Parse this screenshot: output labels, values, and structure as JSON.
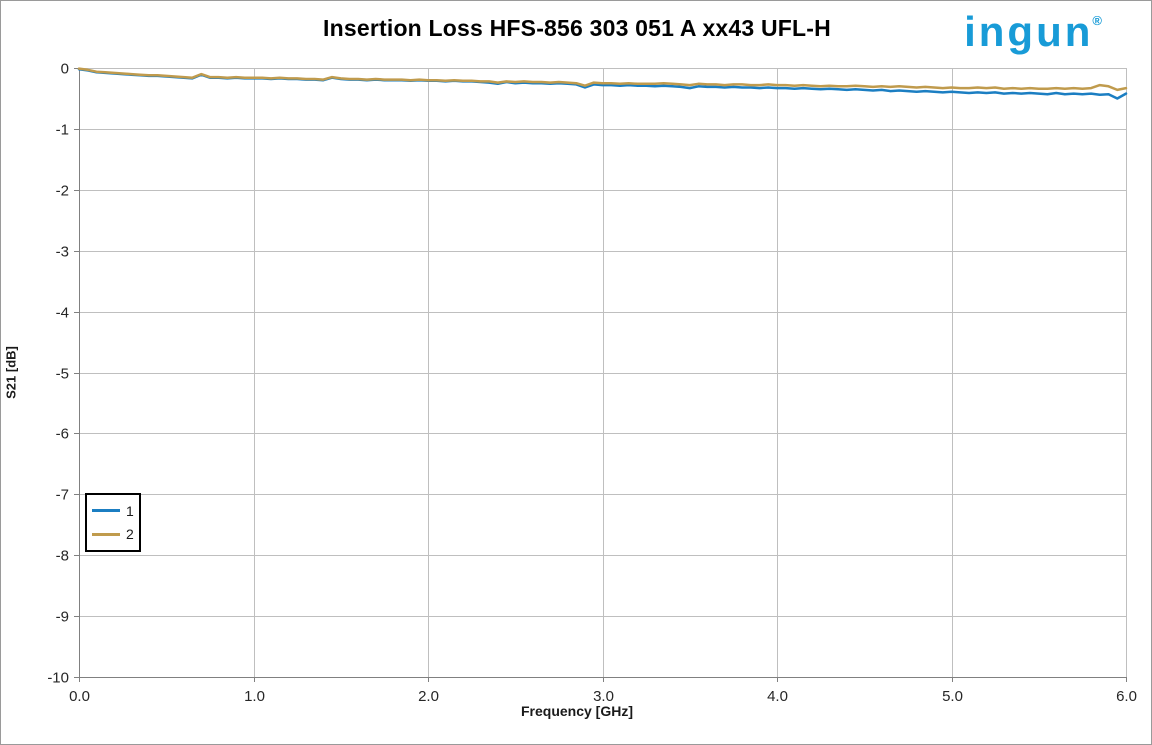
{
  "page": {
    "background": "#ffffff",
    "border_color": "#9a9a9a"
  },
  "logo": {
    "text": "ingun",
    "registered": "®",
    "color": "#189bd7"
  },
  "chart_data": {
    "type": "line",
    "title": "Insertion Loss HFS-856 303 051 A xx43 UFL-H",
    "xlabel": "Frequency [GHz]",
    "ylabel": "S21 [dB]",
    "xlim": [
      0,
      6
    ],
    "ylim": [
      -10,
      0
    ],
    "xticks": [
      "0.0",
      "1.0",
      "2.0",
      "3.0",
      "4.0",
      "5.0",
      "6.0"
    ],
    "yticks": [
      "0",
      "-1",
      "-2",
      "-3",
      "-4",
      "-5",
      "-6",
      "-7",
      "-8",
      "-9",
      "-10"
    ],
    "grid": true,
    "legend_position": "inside-left",
    "grid_color": "#bfbfbf",
    "axis_color": "#808080",
    "tick_label_color": "#262626",
    "x_start": 0,
    "x_step": 0.05,
    "series": [
      {
        "name": "1",
        "color": "#1b7ec2",
        "values": [
          -0.02,
          -0.04,
          -0.07,
          -0.08,
          -0.09,
          -0.1,
          -0.11,
          -0.12,
          -0.13,
          -0.13,
          -0.14,
          -0.15,
          -0.16,
          -0.17,
          -0.11,
          -0.16,
          -0.16,
          -0.17,
          -0.16,
          -0.17,
          -0.17,
          -0.17,
          -0.18,
          -0.17,
          -0.18,
          -0.18,
          -0.19,
          -0.19,
          -0.2,
          -0.16,
          -0.18,
          -0.19,
          -0.19,
          -0.2,
          -0.19,
          -0.2,
          -0.2,
          -0.2,
          -0.21,
          -0.2,
          -0.21,
          -0.21,
          -0.22,
          -0.21,
          -0.22,
          -0.22,
          -0.23,
          -0.24,
          -0.26,
          -0.23,
          -0.25,
          -0.24,
          -0.25,
          -0.25,
          -0.26,
          -0.25,
          -0.26,
          -0.27,
          -0.32,
          -0.27,
          -0.28,
          -0.28,
          -0.29,
          -0.28,
          -0.29,
          -0.29,
          -0.3,
          -0.29,
          -0.3,
          -0.31,
          -0.33,
          -0.3,
          -0.31,
          -0.31,
          -0.32,
          -0.31,
          -0.32,
          -0.32,
          -0.33,
          -0.32,
          -0.33,
          -0.33,
          -0.34,
          -0.33,
          -0.34,
          -0.35,
          -0.34,
          -0.35,
          -0.36,
          -0.35,
          -0.36,
          -0.37,
          -0.36,
          -0.38,
          -0.37,
          -0.38,
          -0.39,
          -0.38,
          -0.39,
          -0.4,
          -0.39,
          -0.4,
          -0.41,
          -0.4,
          -0.41,
          -0.4,
          -0.42,
          -0.41,
          -0.42,
          -0.41,
          -0.42,
          -0.43,
          -0.41,
          -0.43,
          -0.42,
          -0.43,
          -0.42,
          -0.44,
          -0.43,
          -0.5,
          -0.42
        ]
      },
      {
        "name": "2",
        "color": "#c09b4d",
        "values": [
          -0.01,
          -0.03,
          -0.06,
          -0.07,
          -0.08,
          -0.09,
          -0.1,
          -0.11,
          -0.12,
          -0.12,
          -0.13,
          -0.14,
          -0.15,
          -0.16,
          -0.1,
          -0.15,
          -0.15,
          -0.16,
          -0.15,
          -0.16,
          -0.16,
          -0.16,
          -0.17,
          -0.16,
          -0.17,
          -0.17,
          -0.18,
          -0.18,
          -0.19,
          -0.15,
          -0.17,
          -0.18,
          -0.18,
          -0.19,
          -0.18,
          -0.19,
          -0.19,
          -0.19,
          -0.2,
          -0.19,
          -0.2,
          -0.2,
          -0.21,
          -0.2,
          -0.21,
          -0.21,
          -0.22,
          -0.22,
          -0.24,
          -0.22,
          -0.23,
          -0.22,
          -0.23,
          -0.23,
          -0.24,
          -0.23,
          -0.24,
          -0.25,
          -0.29,
          -0.24,
          -0.25,
          -0.25,
          -0.26,
          -0.25,
          -0.26,
          -0.26,
          -0.26,
          -0.25,
          -0.26,
          -0.27,
          -0.28,
          -0.26,
          -0.27,
          -0.27,
          -0.28,
          -0.27,
          -0.27,
          -0.28,
          -0.28,
          -0.27,
          -0.28,
          -0.28,
          -0.29,
          -0.28,
          -0.29,
          -0.3,
          -0.29,
          -0.3,
          -0.3,
          -0.29,
          -0.3,
          -0.31,
          -0.3,
          -0.31,
          -0.3,
          -0.31,
          -0.32,
          -0.31,
          -0.32,
          -0.33,
          -0.32,
          -0.33,
          -0.33,
          -0.32,
          -0.33,
          -0.32,
          -0.34,
          -0.33,
          -0.34,
          -0.33,
          -0.34,
          -0.34,
          -0.33,
          -0.34,
          -0.33,
          -0.34,
          -0.33,
          -0.28,
          -0.3,
          -0.36,
          -0.33
        ]
      }
    ]
  }
}
